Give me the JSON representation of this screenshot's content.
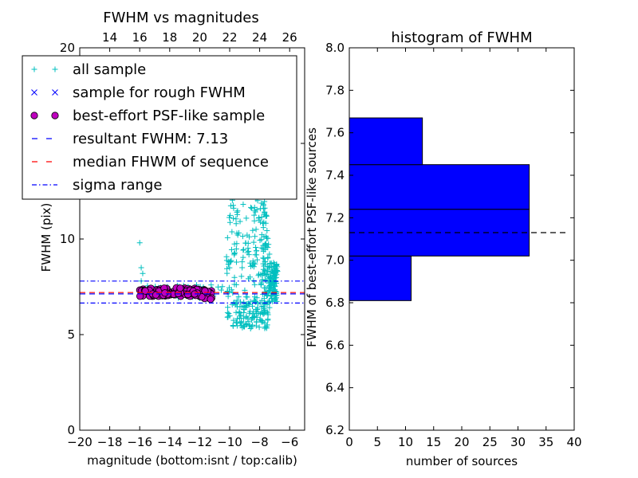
{
  "chart_data": [
    {
      "type": "scatter",
      "title": "FWHM vs magnitudes",
      "xlabel": "magnitude (bottom:isnt / top:calib)",
      "ylabel": "FWHM (pix)",
      "xlim": [
        -20,
        -5
      ],
      "ylim": [
        0,
        20
      ],
      "top_xlim": [
        12,
        27
      ],
      "x_ticks": [
        -20,
        -18,
        -16,
        -14,
        -12,
        -10,
        -8,
        -6
      ],
      "x_tick_labels": [
        "−20",
        "−18",
        "−16",
        "−14",
        "−12",
        "−10",
        "−8",
        "−6"
      ],
      "top_x_ticks": [
        14,
        16,
        18,
        20,
        22,
        24,
        26
      ],
      "top_x_tick_labels": [
        "14",
        "16",
        "18",
        "20",
        "22",
        "24",
        "26"
      ],
      "y_ticks": [
        0,
        5,
        10,
        15,
        20
      ],
      "y_tick_labels": [
        "0",
        "5",
        "10",
        "15",
        "20"
      ],
      "legend_placement": "upper-left",
      "grid": false,
      "series": [
        {
          "name": "all sample",
          "marker": "+",
          "color": "#00bfbf"
        },
        {
          "name": "sample for rough FWHM",
          "marker": "x",
          "color": "#0000ff"
        },
        {
          "name": "best-effort PSF-like sample",
          "marker": "o",
          "color": "#bf00bf"
        },
        {
          "name": "resultant FWHM: 7.13",
          "style": "dashed",
          "color": "#0000ff",
          "y": 7.13
        },
        {
          "name": "median FHWM of sequence",
          "style": "dashed",
          "color": "#ff0000",
          "y": 7.2
        },
        {
          "name": "sigma range",
          "style": "dashdot",
          "color": "#0000ff",
          "y": [
            6.65,
            7.8
          ]
        }
      ],
      "approx_points": {
        "all_sample_outliers": [
          [
            -16.0,
            9.8
          ],
          [
            -15.9,
            8.5
          ],
          [
            -15.8,
            8.2
          ],
          [
            -15.9,
            7.8
          ]
        ],
        "psf_band": {
          "x_range": [
            -16.0,
            -11.2
          ],
          "y_range": [
            6.9,
            7.5
          ]
        },
        "faint_cloud": {
          "x_range": [
            -10.3,
            -6.8
          ],
          "y_range": [
            5.3,
            20.5
          ]
        }
      }
    },
    {
      "type": "bar",
      "orientation": "horizontal",
      "title": "histogram of FWHM",
      "xlabel": "number of sources",
      "ylabel": "FWHM of best-effort PSF-like sources",
      "xlim": [
        0,
        40
      ],
      "ylim": [
        6.2,
        8.0
      ],
      "x_ticks": [
        0,
        5,
        10,
        15,
        20,
        25,
        30,
        35,
        40
      ],
      "x_tick_labels": [
        "0",
        "5",
        "10",
        "15",
        "20",
        "25",
        "30",
        "35",
        "40"
      ],
      "y_ticks": [
        6.2,
        6.4,
        6.6,
        6.8,
        7.0,
        7.2,
        7.4,
        7.6,
        7.8,
        8.0
      ],
      "y_tick_labels": [
        "6.2",
        "6.4",
        "6.6",
        "6.8",
        "7.0",
        "7.2",
        "7.4",
        "7.6",
        "7.8",
        "8.0"
      ],
      "bar_color": "#0000ff",
      "bins": [
        {
          "y0": 6.81,
          "y1": 7.02,
          "count": 11
        },
        {
          "y0": 7.02,
          "y1": 7.24,
          "count": 32
        },
        {
          "y0": 7.24,
          "y1": 7.45,
          "count": 32
        },
        {
          "y0": 7.45,
          "y1": 7.67,
          "count": 13
        }
      ],
      "reference_line": {
        "y": 7.13,
        "style": "dashed",
        "color": "#000000"
      }
    }
  ]
}
